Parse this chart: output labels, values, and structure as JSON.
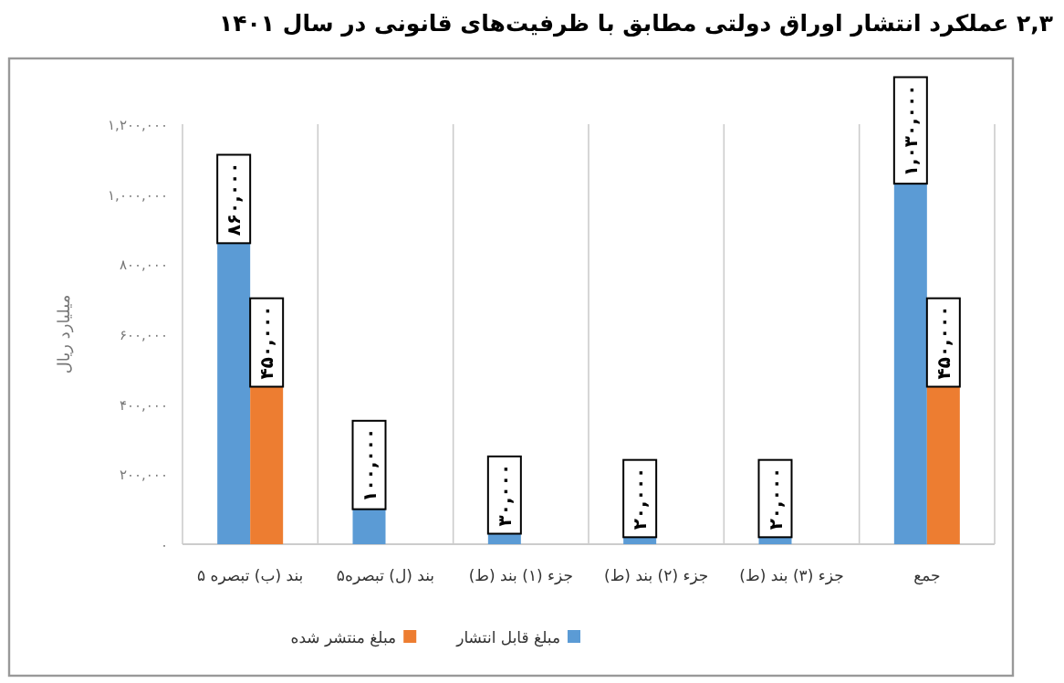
{
  "chart_data": {
    "type": "bar",
    "title": "۲,۳ عملکرد انتشار اوراق دولتی مطابق با ظرفیت‌های قانونی در سال ۱۴۰۱",
    "ylabel": "میلیارد ریال",
    "categories": [
      "بند (ب) تبصره ۵",
      "بند (ل) تبصره۵",
      "جزء (۱) بند (ط)",
      "جزء (۲) بند (ط)",
      "جزء (۳) بند (ط)",
      "جمع"
    ],
    "series": [
      {
        "name": "مبلغ قابل انتشار",
        "color": "#5b9bd5",
        "values": [
          860000,
          100000,
          30000,
          20000,
          20000,
          1030000
        ],
        "value_labels": [
          "۸۶۰,۰۰۰",
          "۱۰۰,۰۰۰",
          "۳۰,۰۰۰",
          "۲۰,۰۰۰",
          "۲۰,۰۰۰",
          "۱,۰۳۰,۰۰۰"
        ]
      },
      {
        "name": "مبلغ منتشر شده",
        "color": "#ed7d31",
        "values": [
          450000,
          null,
          null,
          null,
          null,
          450000
        ],
        "value_labels": [
          "۴۵۰,۰۰۰",
          null,
          null,
          null,
          null,
          "۴۵۰,۰۰۰"
        ]
      }
    ],
    "ylim": [
      0,
      1200000
    ],
    "yticks": [
      {
        "value": 0,
        "label": "۰"
      },
      {
        "value": 200000,
        "label": "۲۰۰,۰۰۰"
      },
      {
        "value": 400000,
        "label": "۴۰۰,۰۰۰"
      },
      {
        "value": 600000,
        "label": "۶۰۰,۰۰۰"
      },
      {
        "value": 800000,
        "label": "۸۰۰,۰۰۰"
      },
      {
        "value": 1000000,
        "label": "۱,۰۰۰,۰۰۰"
      },
      {
        "value": 1200000,
        "label": "۱,۲۰۰,۰۰۰"
      }
    ],
    "legend": "bottom"
  }
}
